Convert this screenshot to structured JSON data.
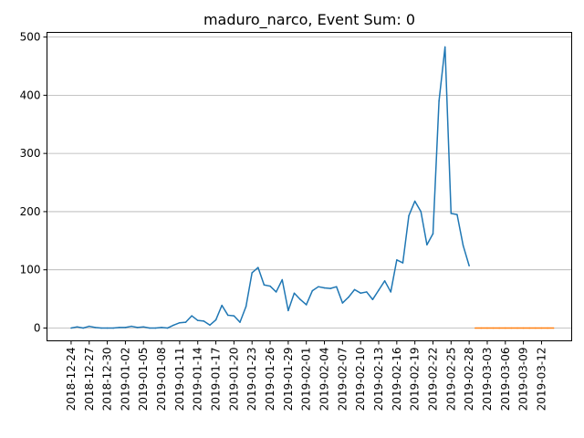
{
  "chart_data": {
    "type": "line",
    "title": "maduro_narco, Event Sum: 0",
    "xlabel": "",
    "ylabel": "",
    "x_range": [
      "2018-12-20",
      "2019-03-17"
    ],
    "ylim": [
      -22,
      508
    ],
    "yticks": [
      0,
      100,
      200,
      300,
      400,
      500
    ],
    "xticks": [
      "2018-12-24",
      "2018-12-27",
      "2018-12-30",
      "2019-01-02",
      "2019-01-05",
      "2019-01-08",
      "2019-01-11",
      "2019-01-14",
      "2019-01-17",
      "2019-01-20",
      "2019-01-23",
      "2019-01-26",
      "2019-01-29",
      "2019-02-01",
      "2019-02-04",
      "2019-02-07",
      "2019-02-10",
      "2019-02-13",
      "2019-02-16",
      "2019-02-19",
      "2019-02-22",
      "2019-02-25",
      "2019-02-28",
      "2019-03-03",
      "2019-03-06",
      "2019-03-09",
      "2019-03-12"
    ],
    "grid": "y",
    "series": [
      {
        "color": "#1f77b4",
        "x": [
          "2018-12-24",
          "2018-12-25",
          "2018-12-26",
          "2018-12-27",
          "2018-12-28",
          "2018-12-29",
          "2018-12-30",
          "2018-12-31",
          "2019-01-01",
          "2019-01-02",
          "2019-01-03",
          "2019-01-04",
          "2019-01-05",
          "2019-01-06",
          "2019-01-07",
          "2019-01-08",
          "2019-01-09",
          "2019-01-10",
          "2019-01-11",
          "2019-01-12",
          "2019-01-13",
          "2019-01-14",
          "2019-01-15",
          "2019-01-16",
          "2019-01-17",
          "2019-01-18",
          "2019-01-19",
          "2019-01-20",
          "2019-01-21",
          "2019-01-22",
          "2019-01-23",
          "2019-01-24",
          "2019-01-25",
          "2019-01-26",
          "2019-01-27",
          "2019-01-28",
          "2019-01-29",
          "2019-01-30",
          "2019-01-31",
          "2019-02-01",
          "2019-02-02",
          "2019-02-03",
          "2019-02-04",
          "2019-02-05",
          "2019-02-06",
          "2019-02-07",
          "2019-02-08",
          "2019-02-09",
          "2019-02-10",
          "2019-02-11",
          "2019-02-12",
          "2019-02-13",
          "2019-02-14",
          "2019-02-15",
          "2019-02-16",
          "2019-02-17",
          "2019-02-18",
          "2019-02-19",
          "2019-02-20",
          "2019-02-21",
          "2019-02-22",
          "2019-02-23",
          "2019-02-24",
          "2019-02-25",
          "2019-02-26",
          "2019-02-27",
          "2019-02-28"
        ],
        "y": [
          0,
          2,
          0,
          3,
          1,
          0,
          0,
          0,
          1,
          1,
          3,
          1,
          2,
          0,
          0,
          1,
          0,
          5,
          9,
          10,
          21,
          13,
          12,
          5,
          14,
          39,
          22,
          21,
          10,
          37,
          95,
          104,
          74,
          72,
          62,
          83,
          30,
          60,
          49,
          40,
          64,
          71,
          69,
          68,
          71,
          43,
          53,
          66,
          60,
          62,
          49,
          65,
          81,
          62,
          117,
          112,
          193,
          218,
          200,
          143,
          162,
          390,
          483,
          197,
          195,
          142,
          107
        ]
      },
      {
        "color": "#ff7f0e",
        "x": [
          "2019-03-01",
          "2019-03-02",
          "2019-03-03",
          "2019-03-04",
          "2019-03-05",
          "2019-03-06",
          "2019-03-07",
          "2019-03-08",
          "2019-03-09",
          "2019-03-10",
          "2019-03-11",
          "2019-03-12",
          "2019-03-13",
          "2019-03-14"
        ],
        "y": [
          0,
          0,
          0,
          0,
          0,
          0,
          0,
          0,
          0,
          0,
          0,
          0,
          0,
          0
        ]
      }
    ]
  }
}
